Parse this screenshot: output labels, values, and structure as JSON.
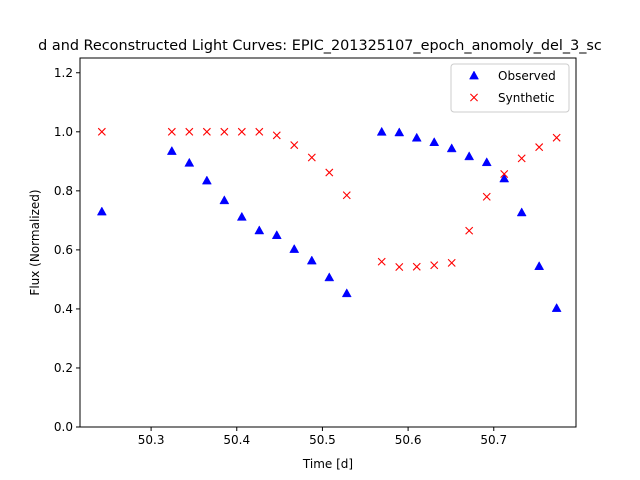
{
  "chart_data": {
    "type": "scatter",
    "title": "d and Reconstructed Light Curves: EPIC_201325107_epoch_anomoly_del_3_sc",
    "xlabel": "Time [d]",
    "ylabel": "Flux (Normalized)",
    "xlim": [
      50.217,
      50.796
    ],
    "ylim": [
      0.0,
      1.25
    ],
    "xticks": [
      50.3,
      50.4,
      50.5,
      50.6,
      50.7
    ],
    "xtick_labels": [
      "50.3",
      "50.4",
      "50.5",
      "50.6",
      "50.7"
    ],
    "yticks": [
      0.0,
      0.2,
      0.4,
      0.6,
      0.8,
      1.0,
      1.2
    ],
    "ytick_labels": [
      "0.0",
      "0.2",
      "0.4",
      "0.6",
      "0.8",
      "1.0",
      "1.2"
    ],
    "grid": false,
    "legend_position": "top-right",
    "series": [
      {
        "name": "Observed",
        "marker": "triangle",
        "color": "#0000ff",
        "x": [
          50.2425,
          50.3242,
          50.3446,
          50.3651,
          50.3855,
          50.4059,
          50.4263,
          50.4467,
          50.4671,
          50.4876,
          50.508,
          50.5284,
          50.5692,
          50.5897,
          50.6101,
          50.6305,
          50.6509,
          50.6713,
          50.6918,
          50.7122,
          50.7326,
          50.753,
          50.7734
        ],
        "y": [
          0.73,
          0.935,
          0.895,
          0.835,
          0.768,
          0.712,
          0.666,
          0.65,
          0.603,
          0.564,
          0.507,
          0.453,
          1.0,
          0.998,
          0.98,
          0.965,
          0.944,
          0.917,
          0.897,
          0.842,
          0.727,
          0.545,
          0.403
        ]
      },
      {
        "name": "Synthetic",
        "marker": "x",
        "color": "#ff0000",
        "x": [
          50.2425,
          50.3242,
          50.3446,
          50.3651,
          50.3855,
          50.4059,
          50.4263,
          50.4467,
          50.4671,
          50.4876,
          50.508,
          50.5284,
          50.5692,
          50.5897,
          50.6101,
          50.6305,
          50.6509,
          50.6713,
          50.6918,
          50.7122,
          50.7326,
          50.753,
          50.7734
        ],
        "y": [
          1.0,
          1.0,
          1.0,
          1.0,
          1.0,
          1.0,
          1.0,
          0.988,
          0.955,
          0.913,
          0.862,
          0.785,
          0.56,
          0.542,
          0.543,
          0.548,
          0.556,
          0.665,
          0.78,
          0.857,
          0.91,
          0.948,
          0.98
        ]
      }
    ]
  }
}
